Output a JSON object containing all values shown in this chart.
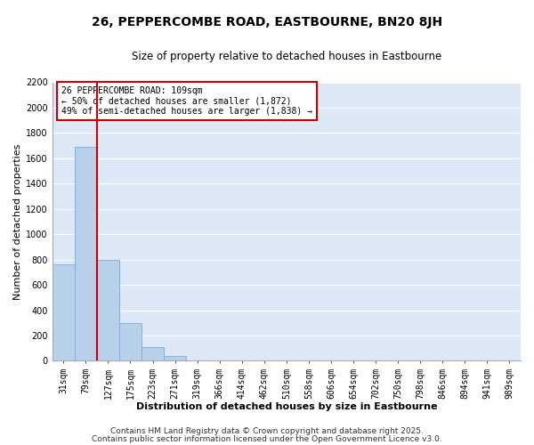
{
  "title": "26, PEPPERCOMBE ROAD, EASTBOURNE, BN20 8JH",
  "subtitle": "Size of property relative to detached houses in Eastbourne",
  "xlabel": "Distribution of detached houses by size in Eastbourne",
  "ylabel": "Number of detached properties",
  "bar_color": "#b8d0ea",
  "bar_edge_color": "#7aadd4",
  "background_color": "#dce8f5",
  "grid_color": "#ffffff",
  "fig_background": "#ffffff",
  "categories": [
    "31sqm",
    "79sqm",
    "127sqm",
    "175sqm",
    "223sqm",
    "271sqm",
    "319sqm",
    "366sqm",
    "414sqm",
    "462sqm",
    "510sqm",
    "558sqm",
    "606sqm",
    "654sqm",
    "702sqm",
    "750sqm",
    "798sqm",
    "846sqm",
    "894sqm",
    "941sqm",
    "989sqm"
  ],
  "values": [
    760,
    1690,
    800,
    300,
    110,
    35,
    0,
    0,
    0,
    0,
    0,
    0,
    0,
    0,
    0,
    0,
    0,
    0,
    0,
    0,
    0
  ],
  "ylim": [
    0,
    2200
  ],
  "yticks": [
    0,
    200,
    400,
    600,
    800,
    1000,
    1200,
    1400,
    1600,
    1800,
    2000,
    2200
  ],
  "vline_color": "#cc0000",
  "annotation_title": "26 PEPPERCOMBE ROAD: 109sqm",
  "annotation_line1": "← 50% of detached houses are smaller (1,872)",
  "annotation_line2": "49% of semi-detached houses are larger (1,838) →",
  "annotation_box_color": "#ffffff",
  "annotation_box_edge": "#cc0000",
  "footer1": "Contains HM Land Registry data © Crown copyright and database right 2025.",
  "footer2": "Contains public sector information licensed under the Open Government Licence v3.0.",
  "title_fontsize": 10,
  "subtitle_fontsize": 8.5,
  "axis_label_fontsize": 8,
  "tick_fontsize": 7,
  "annotation_fontsize": 7,
  "footer_fontsize": 6.5
}
